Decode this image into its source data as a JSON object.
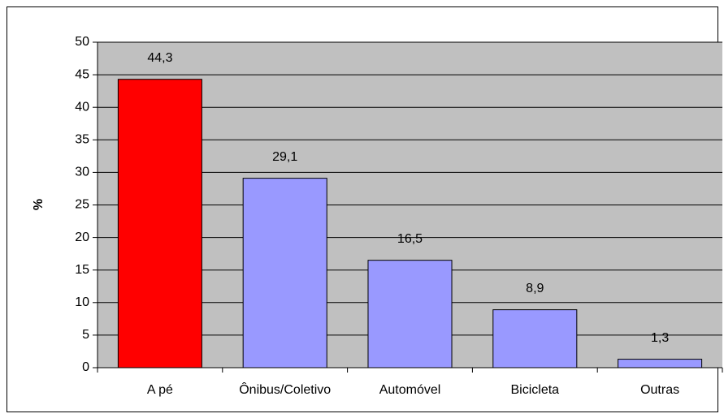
{
  "chart_data": {
    "type": "bar",
    "y_label": "%",
    "categories": [
      "A pé",
      "Ônibus/Coletivo",
      "Automóvel",
      "Bicicleta",
      "Outras"
    ],
    "values": [
      44.3,
      29.1,
      16.5,
      8.9,
      1.3
    ],
    "value_labels": [
      "44,3",
      "29,1",
      "16,5",
      "8,9",
      "1,3"
    ],
    "colors": [
      "#ff0000",
      "#9999ff",
      "#9999ff",
      "#9999ff",
      "#9999ff"
    ],
    "ylim": [
      0,
      50
    ],
    "yticks": [
      0,
      5,
      10,
      15,
      20,
      25,
      30,
      35,
      40,
      45,
      50
    ],
    "grid": true,
    "background": "#c0c0c0"
  }
}
